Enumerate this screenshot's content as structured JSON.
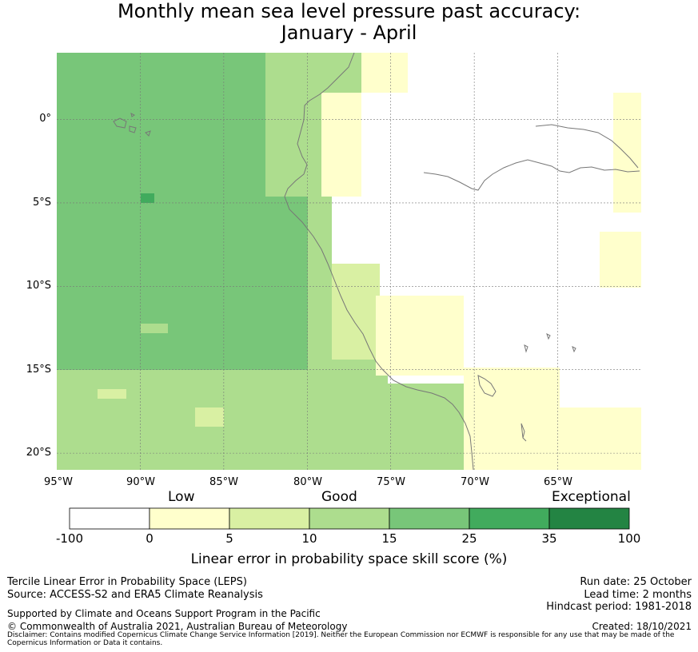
{
  "title": {
    "line1": "Monthly mean sea level pressure past accuracy:",
    "line2": "January - April"
  },
  "map": {
    "y_labels": [
      "0°",
      "5°S",
      "10°S",
      "15°S",
      "20°S"
    ],
    "x_labels": [
      "95°W",
      "90°W",
      "85°W",
      "80°W",
      "75°W",
      "70°W",
      "65°W"
    ],
    "lon_range": [
      -95,
      -60
    ],
    "lat_range": [
      -21,
      4
    ]
  },
  "colorbar": {
    "categories": [
      "Low",
      "Good",
      "Exceptional"
    ],
    "ticks": [
      "-100",
      "0",
      "5",
      "10",
      "15",
      "25",
      "35",
      "100"
    ],
    "colors": [
      "#ffffff",
      "#ffffcc",
      "#d9f0a3",
      "#addd8e",
      "#78c679",
      "#41ab5d",
      "#238443"
    ],
    "title": "Linear error in probability space skill score (%)"
  },
  "footer": {
    "left1": "Tercile Linear Error in Probability Space (LEPS)",
    "left2": "Source: ACCESS-S2 and ERA5 Climate Reanalysis",
    "left3": "Supported by Climate and Oceans Support Program in the Pacific",
    "left4": "© Commonwealth of Australia 2021, Australian Bureau of Meteorology",
    "right1": "Run date: 25 October",
    "right2": "Lead time: 2 months",
    "right3": "Hindcast period: 1981-2018",
    "right4": "Created: 18/10/2021",
    "disclaimer": "Disclaimer: Contains modified Copernicus Climate Change Service Information [2019]. Neither the European Commission nor ECMWF is responsible for any use that may be made of the Copernicus Information or Data it contains."
  }
}
